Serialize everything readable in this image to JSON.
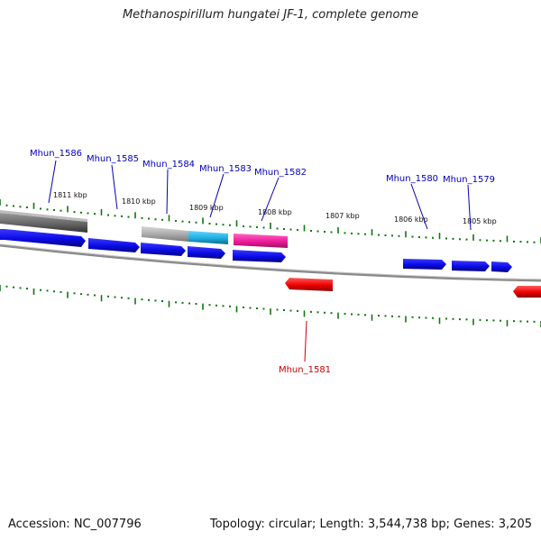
{
  "title": "Methanospirillum hungatei JF-1, complete genome",
  "footer": {
    "accession": "Accession: NC_007796",
    "summary": "Topology: circular; Length: 3,544,738 bp; Genes: 3,205"
  },
  "colors": {
    "forward_gene": "#0a0ae6",
    "reverse_gene": "#ee0000",
    "pink_gene": "#ee1a9a",
    "cyan_gene": "#1aaee0",
    "gray_gene": "#999999",
    "backbone": "#8c8c8c",
    "tick": "#117711",
    "label_fwd": "#0000bb",
    "label_rev": "#cc0000"
  },
  "scale_labels": [
    "1811 kbp",
    "1810 kbp",
    "1809 kbp",
    "1808 kbp",
    "1807 kbp",
    "1806 kbp",
    "1805 kbp"
  ],
  "genes": [
    {
      "name": "Mhun_1586",
      "strand": "forward"
    },
    {
      "name": "Mhun_1585",
      "strand": "forward"
    },
    {
      "name": "Mhun_1584",
      "strand": "forward"
    },
    {
      "name": "Mhun_1583",
      "strand": "forward"
    },
    {
      "name": "Mhun_1582",
      "strand": "forward"
    },
    {
      "name": "Mhun_1580",
      "strand": "forward"
    },
    {
      "name": "Mhun_1579",
      "strand": "forward"
    },
    {
      "name": "Mhun_1581",
      "strand": "reverse"
    }
  ]
}
